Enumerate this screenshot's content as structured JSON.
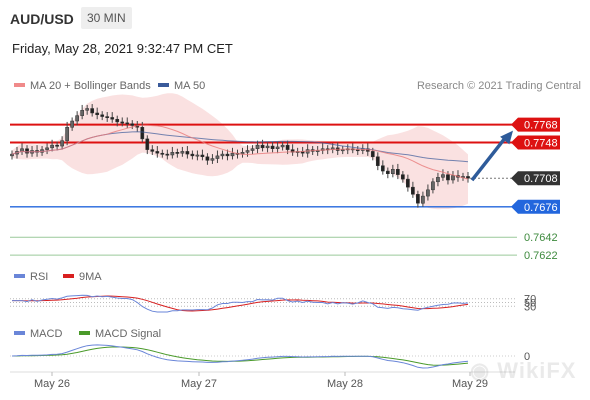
{
  "header": {
    "symbol": "AUD/USD",
    "timeframe": "30 MIN",
    "datetime": "Friday, May 28, 2021 9:32:47 PM CET",
    "credit": "Research © 2021 Trading Central"
  },
  "legend": {
    "ma20_label": "MA 20 + Bollinger Bands",
    "ma50_label": "MA 50",
    "rsi_label": "RSI",
    "rsi_ma_label": "9MA",
    "macd_label": "MACD",
    "macd_signal_label": "MACD Signal"
  },
  "colors": {
    "up": "#555555",
    "ma20": "#e87a7a",
    "ma50": "#3a5a9a",
    "band_fill": "#f6c9c9",
    "resistance": "#dd1111",
    "support": "#2266dd",
    "target": "#3e8a3e",
    "arrow": "#2e5b9a",
    "current": "#333333"
  },
  "chart_data": [
    {
      "type": "candlestick",
      "x_labels": [
        "May 26",
        "May 27",
        "May 28",
        "May 29"
      ],
      "close": [
        0.7735,
        0.7738,
        0.7741,
        0.7736,
        0.7739,
        0.7737,
        0.774,
        0.7742,
        0.7745,
        0.7744,
        0.775,
        0.7765,
        0.7772,
        0.7778,
        0.7784,
        0.7786,
        0.7781,
        0.7779,
        0.7777,
        0.7776,
        0.7774,
        0.7771,
        0.777,
        0.7769,
        0.7767,
        0.7765,
        0.7752,
        0.774,
        0.7738,
        0.7736,
        0.7735,
        0.7734,
        0.7737,
        0.7736,
        0.7738,
        0.7735,
        0.7733,
        0.7734,
        0.7732,
        0.7728,
        0.773,
        0.7733,
        0.7735,
        0.7733,
        0.7736,
        0.7735,
        0.7737,
        0.7739,
        0.7741,
        0.7745,
        0.7742,
        0.7744,
        0.7741,
        0.7743,
        0.7745,
        0.774,
        0.7737,
        0.7738,
        0.7736,
        0.774,
        0.7738,
        0.7739,
        0.7741,
        0.774,
        0.7742,
        0.7739,
        0.774,
        0.7741,
        0.774,
        0.7739,
        0.7741,
        0.7738,
        0.7732,
        0.7722,
        0.7716,
        0.7713,
        0.7718,
        0.7712,
        0.7707,
        0.7698,
        0.769,
        0.768,
        0.7688,
        0.7695,
        0.7704,
        0.7709,
        0.7712,
        0.7706,
        0.7711,
        0.7709,
        0.771,
        0.7708
      ],
      "price_levels": [
        {
          "label": "0.7768",
          "value": 0.7768,
          "role": "resistance"
        },
        {
          "label": "0.7748",
          "value": 0.7748,
          "role": "resistance"
        },
        {
          "label": "0.7708",
          "value": 0.7708,
          "role": "current"
        },
        {
          "label": "0.7676",
          "value": 0.7676,
          "role": "support"
        },
        {
          "label": "0.7642",
          "value": 0.7642,
          "role": "target"
        },
        {
          "label": "0.7622",
          "value": 0.7622,
          "role": "target"
        }
      ],
      "ylim": [
        0.7612,
        0.78
      ]
    },
    {
      "type": "line",
      "name": "RSI",
      "levels": [
        {
          "label": "70",
          "value": 70
        },
        {
          "label": "50",
          "value": 50
        },
        {
          "label": "30",
          "value": 30
        }
      ],
      "ylim": [
        0,
        100
      ]
    },
    {
      "type": "line",
      "name": "MACD",
      "levels": [
        {
          "label": "0",
          "value": 0
        }
      ]
    }
  ]
}
